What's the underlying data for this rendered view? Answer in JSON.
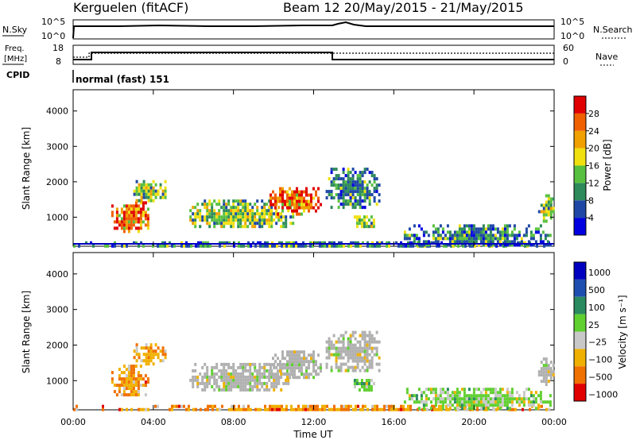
{
  "header": {
    "station": "Kerguelen (fitACF)",
    "beam_date": "Beam 12  20/May/2015 - 21/May/2015"
  },
  "panels": {
    "nsky": {
      "label": "N.Sky",
      "y_ticks": [
        "10^5",
        "10^0"
      ],
      "right_ticks": [
        "10^5",
        "10^0"
      ],
      "right_label": "N.Search"
    },
    "freq": {
      "label_line1": "Freq.",
      "label_line2": "[MHz]",
      "y_ticks": [
        "18",
        "8"
      ],
      "right_ticks": [
        "60",
        "0"
      ],
      "right_label": "Nave"
    },
    "cpid": {
      "label": "CPID",
      "text": "normal (fast) 151"
    }
  },
  "colors": {
    "power": [
      "#0000e0",
      "#1f48a6",
      "#2e8a5a",
      "#58c040",
      "#f0e010",
      "#f0a000",
      "#f06000",
      "#e00000"
    ],
    "velocity": [
      "#0000c0",
      "#1e4fb0",
      "#2a8a60",
      "#60d030",
      "#c8c8c8",
      "#f0b000",
      "#f07000",
      "#e00000"
    ],
    "ground": "#b0b0b0"
  },
  "chart_data": [
    {
      "type": "heatmap",
      "name_label": "power",
      "title": "",
      "xlabel": "Time UT",
      "ylabel": "Slant Range [km]",
      "x_ticks": [
        "00:00",
        "04:00",
        "08:00",
        "12:00",
        "16:00",
        "20:00",
        "00:00"
      ],
      "xlim_hours": [
        0,
        24
      ],
      "ylim_km": [
        180,
        4600
      ],
      "y_ticks": [
        1000,
        2000,
        3000,
        4000
      ],
      "colorbar": {
        "label": "Power [dB]",
        "ticks": [
          "4",
          "8",
          "12",
          "16",
          "20",
          "24",
          "28"
        ],
        "range": [
          0,
          32
        ]
      },
      "regions": [
        {
          "t0": 0.0,
          "t1": 24.0,
          "r0": 200,
          "r1": 320,
          "level": "low"
        },
        {
          "t0": 1.9,
          "t1": 3.8,
          "r0": 600,
          "r1": 1450,
          "level": "high"
        },
        {
          "t0": 3.0,
          "t1": 4.6,
          "r0": 1500,
          "r1": 2050,
          "level": "mid"
        },
        {
          "t0": 5.8,
          "t1": 11.0,
          "r0": 700,
          "r1": 1500,
          "level": "mid"
        },
        {
          "t0": 9.8,
          "t1": 12.3,
          "r0": 1100,
          "r1": 1850,
          "level": "high"
        },
        {
          "t0": 12.6,
          "t1": 15.3,
          "r0": 1300,
          "r1": 2400,
          "level": "low"
        },
        {
          "t0": 14.0,
          "t1": 15.0,
          "r0": 700,
          "r1": 1050,
          "level": "mid"
        },
        {
          "t0": 16.5,
          "t1": 23.8,
          "r0": 200,
          "r1": 800,
          "level": "low"
        },
        {
          "t0": 23.2,
          "t1": 24.0,
          "r0": 900,
          "r1": 1650,
          "level": "mid"
        }
      ]
    },
    {
      "type": "heatmap",
      "name_label": "velocity",
      "title": "",
      "xlabel": "Time UT",
      "ylabel": "Slant Range [km]",
      "x_ticks": [
        "00:00",
        "04:00",
        "08:00",
        "12:00",
        "16:00",
        "20:00",
        "00:00"
      ],
      "xlim_hours": [
        0,
        24
      ],
      "ylim_km": [
        180,
        4600
      ],
      "y_ticks": [
        1000,
        2000,
        3000,
        4000
      ],
      "colorbar": {
        "label": "Velocity [m s⁻¹]",
        "ticks": [
          "1000",
          "500",
          "100",
          "25",
          "−25",
          "−100",
          "−500",
          "−1000"
        ]
      },
      "regions": [
        {
          "t0": 0.0,
          "t1": 24.0,
          "r0": 200,
          "r1": 320,
          "level": "neg"
        },
        {
          "t0": 1.9,
          "t1": 3.8,
          "r0": 600,
          "r1": 1450,
          "level": "neg"
        },
        {
          "t0": 3.0,
          "t1": 4.6,
          "r0": 1500,
          "r1": 2050,
          "level": "neg"
        },
        {
          "t0": 5.8,
          "t1": 11.0,
          "r0": 700,
          "r1": 1500,
          "level": "gs"
        },
        {
          "t0": 9.8,
          "t1": 12.3,
          "r0": 1100,
          "r1": 1850,
          "level": "gs"
        },
        {
          "t0": 12.6,
          "t1": 15.3,
          "r0": 1300,
          "r1": 2400,
          "level": "gs"
        },
        {
          "t0": 14.0,
          "t1": 15.0,
          "r0": 700,
          "r1": 1050,
          "level": "pos"
        },
        {
          "t0": 16.5,
          "t1": 23.8,
          "r0": 200,
          "r1": 800,
          "level": "pos"
        },
        {
          "t0": 23.2,
          "t1": 24.0,
          "r0": 900,
          "r1": 1650,
          "level": "gs"
        }
      ]
    }
  ]
}
